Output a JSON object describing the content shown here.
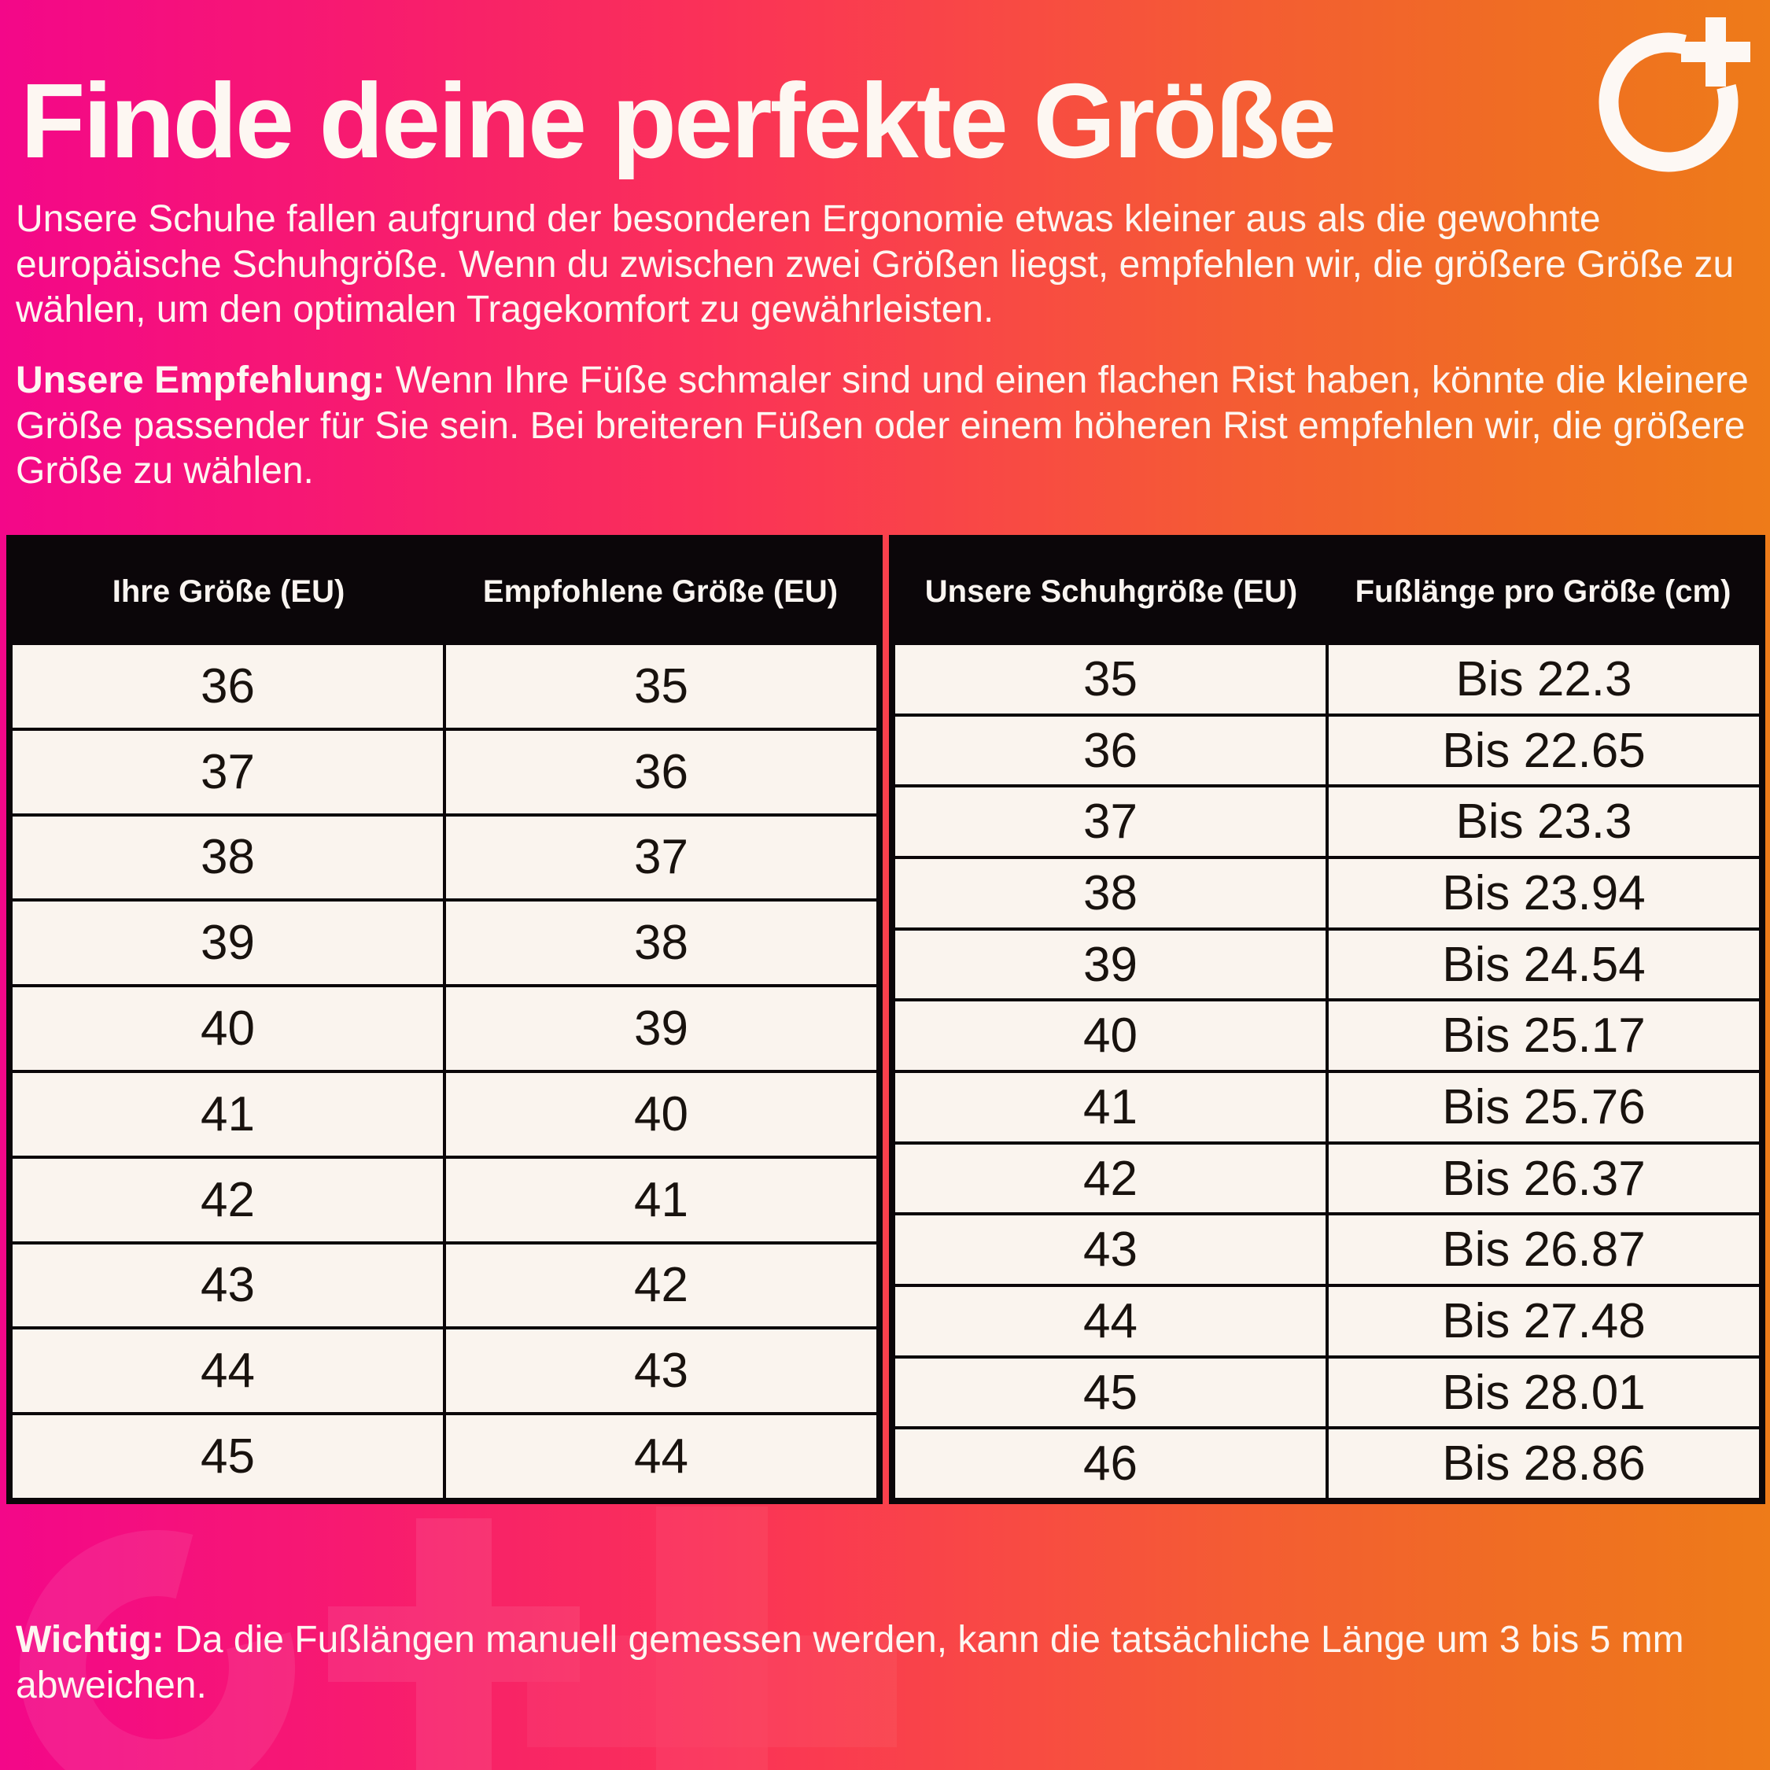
{
  "header": {
    "title": "Finde deine perfekte Größe",
    "logo_icon": "o-plus-brand-logo"
  },
  "intro": {
    "text": "Unsere Schuhe fallen aufgrund der besonderen Ergonomie etwas kleiner aus als die gewohnte europäische Schuhgröße. Wenn du zwischen zwei Größen liegst, empfehlen wir, die größere Größe zu wählen, um den optimalen Tragekomfort zu gewährleisten."
  },
  "recommendation": {
    "label": "Unsere Empfehlung:",
    "text": " Wenn Ihre Füße schmaler sind und einen flachen Rist haben, könnte die kleinere Größe passender für Sie sein. Bei breiteren Füßen oder einem höheren Rist empfehlen wir, die größere Größe zu wählen."
  },
  "size_table": {
    "headers": [
      "Ihre Größe (EU)",
      "Empfohlene Größe (EU)"
    ],
    "rows": [
      [
        "36",
        "35"
      ],
      [
        "37",
        "36"
      ],
      [
        "38",
        "37"
      ],
      [
        "39",
        "38"
      ],
      [
        "40",
        "39"
      ],
      [
        "41",
        "40"
      ],
      [
        "42",
        "41"
      ],
      [
        "43",
        "42"
      ],
      [
        "44",
        "43"
      ],
      [
        "45",
        "44"
      ]
    ]
  },
  "length_table": {
    "headers": [
      "Unsere Schuhgröße (EU)",
      "Fußlänge pro Größe (cm)"
    ],
    "rows": [
      [
        "35",
        "Bis 22.3"
      ],
      [
        "36",
        "Bis 22.65"
      ],
      [
        "37",
        "Bis 23.3"
      ],
      [
        "38",
        "Bis 23.94"
      ],
      [
        "39",
        "Bis 24.54"
      ],
      [
        "40",
        "Bis 25.17"
      ],
      [
        "41",
        "Bis 25.76"
      ],
      [
        "42",
        "Bis 26.37"
      ],
      [
        "43",
        "Bis 26.87"
      ],
      [
        "44",
        "Bis 27.48"
      ],
      [
        "45",
        "Bis 28.01"
      ],
      [
        "46",
        "Bis 28.86"
      ]
    ]
  },
  "note": {
    "label": "Wichtig:",
    "text": " Da die Fußlängen manuell gemessen werden, kann die tatsächliche Länge um 3 bis 5 mm abweichen."
  },
  "colors": {
    "gradient_start": "#F30789",
    "gradient_end": "#EE7B19",
    "table_header_bg": "#0B0609",
    "cell_bg": "#FAF4EE",
    "text_light": "#FDF6F1",
    "text_dark": "#18120E"
  }
}
